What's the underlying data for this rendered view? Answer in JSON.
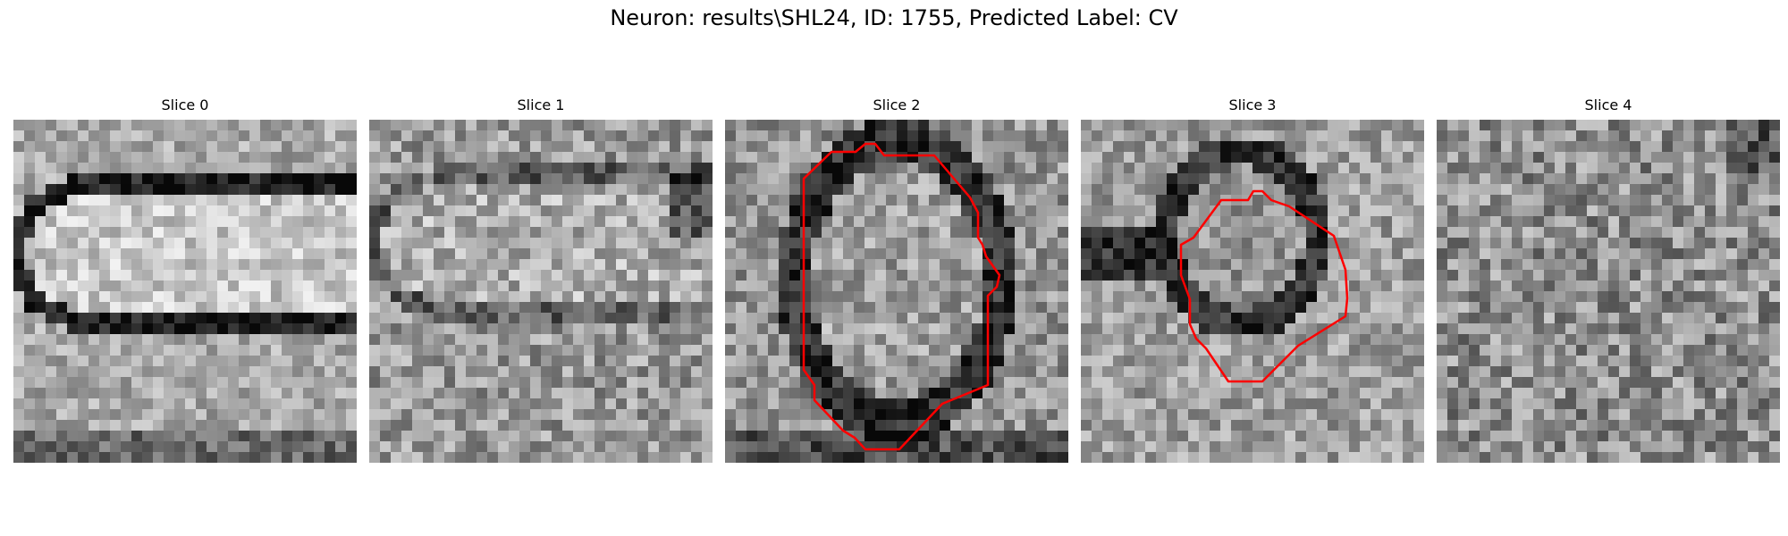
{
  "figure": {
    "title": "Neuron: results\\SHL24, ID: 1755, Predicted Label: CV"
  },
  "panels": [
    {
      "title": "Slice 0",
      "has_contour": false
    },
    {
      "title": "Slice 1",
      "has_contour": false
    },
    {
      "title": "Slice 2",
      "has_contour": true
    },
    {
      "title": "Slice 3",
      "has_contour": true
    },
    {
      "title": "Slice 4",
      "has_contour": false
    }
  ],
  "colors": {
    "contour": "#ff0000",
    "background": "#ffffff"
  },
  "image": {
    "colormap": "gray",
    "grid": "32x32 pixels per slice"
  }
}
